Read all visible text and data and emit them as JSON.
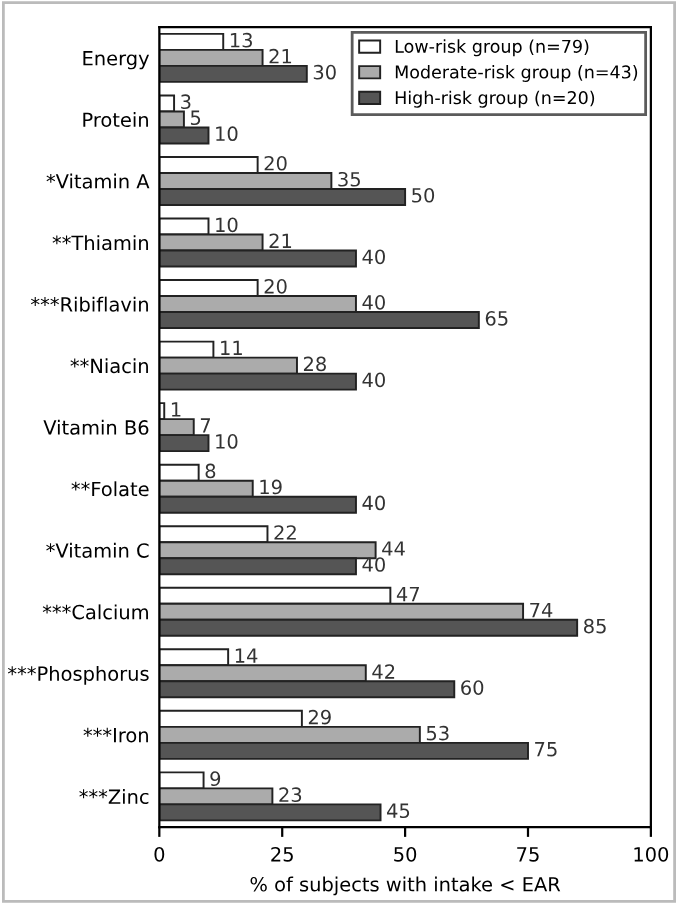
{
  "chart_data": {
    "type": "bar",
    "orientation": "horizontal",
    "categories": [
      "Energy",
      "Protein",
      "*Vitamin A",
      "**Thiamin",
      "***Ribiflavin",
      "**Niacin",
      "Vitamin B6",
      "**Folate",
      "*Vitamin C",
      "***Calcium",
      "***Phosphorus",
      "***Iron",
      "***Zinc"
    ],
    "series": [
      {
        "name": "Low-risk group (n=79)",
        "color": "#ffffff",
        "values": [
          13,
          3,
          20,
          10,
          20,
          11,
          1,
          8,
          22,
          47,
          14,
          29,
          9
        ]
      },
      {
        "name": "Moderate-risk group (n=43)",
        "color": "#ababab",
        "values": [
          21,
          5,
          35,
          21,
          40,
          28,
          7,
          19,
          44,
          74,
          42,
          53,
          23
        ]
      },
      {
        "name": "High-risk group (n=20)",
        "color": "#555555",
        "values": [
          30,
          10,
          50,
          40,
          65,
          40,
          10,
          40,
          40,
          85,
          60,
          75,
          45
        ]
      }
    ],
    "xlabel": "% of subjects with intake < EAR",
    "xlim": [
      0,
      100
    ],
    "xticks": [
      0,
      25,
      50,
      75,
      100
    ],
    "data_labels": true,
    "grid": false,
    "legend": "top right"
  }
}
